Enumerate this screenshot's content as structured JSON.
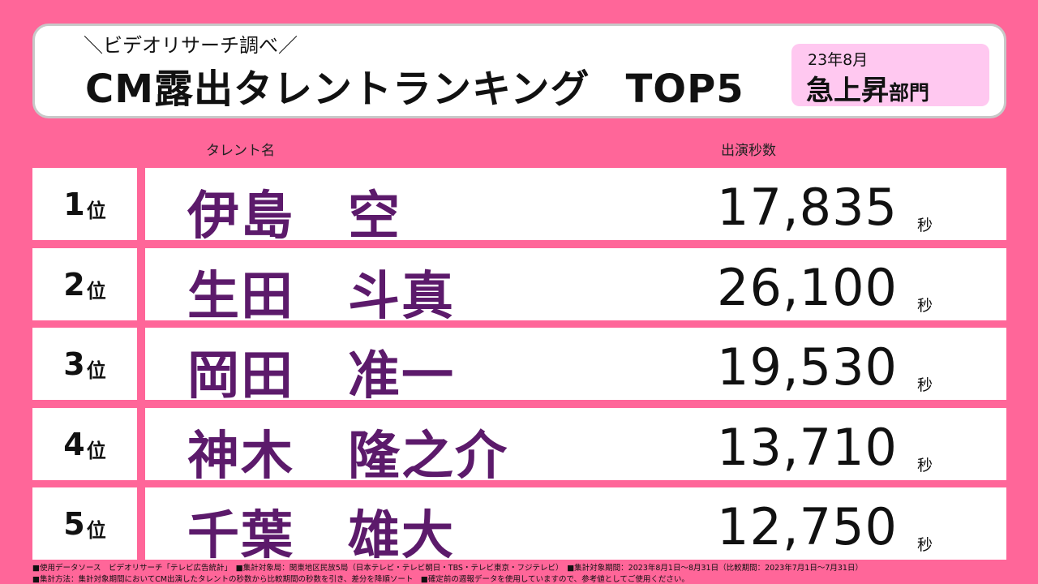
{
  "header": {
    "subtitle": "＼ビデオリサーチ調べ／",
    "title": "CM露出タレントランキング",
    "title_suffix": "TOP5",
    "badge_date": "23年8月",
    "badge_label": "急上昇",
    "badge_label_small": "部門"
  },
  "columns": {
    "name": "タレント名",
    "seconds": "出演秒数"
  },
  "rank_unit": "位",
  "seconds_unit": "秒",
  "rows": [
    {
      "rank": "1",
      "name": "伊島　空",
      "seconds": "17,835"
    },
    {
      "rank": "2",
      "name": "生田　斗真",
      "seconds": "26,100"
    },
    {
      "rank": "3",
      "name": "岡田　准一",
      "seconds": "19,530"
    },
    {
      "rank": "4",
      "name": "神木　隆之介",
      "seconds": "13,710"
    },
    {
      "rank": "5",
      "name": "千葉　雄大",
      "seconds": "12,750"
    }
  ],
  "footnotes": [
    "■使用データソース　ビデオリサーチ「テレビ広告統計」　■集計対象局：関東地区民放5局（日本テレビ・テレビ朝日・TBS・テレビ東京・フジテレビ）　■集計対象期間：2023年8月1日～8月31日（比較期間：2023年7月1日～7月31日）",
    "■集計方法：集計対象期間においてCM出演したタレントの秒数から比較期間の秒数を引き、差分を降順ソート　■確定前の週報データを使用していますので、参考値としてご使用ください。"
  ],
  "colors": {
    "background": "#ff6699",
    "name_text": "#5c1a6b",
    "badge_bg": "#ffc8f0"
  }
}
